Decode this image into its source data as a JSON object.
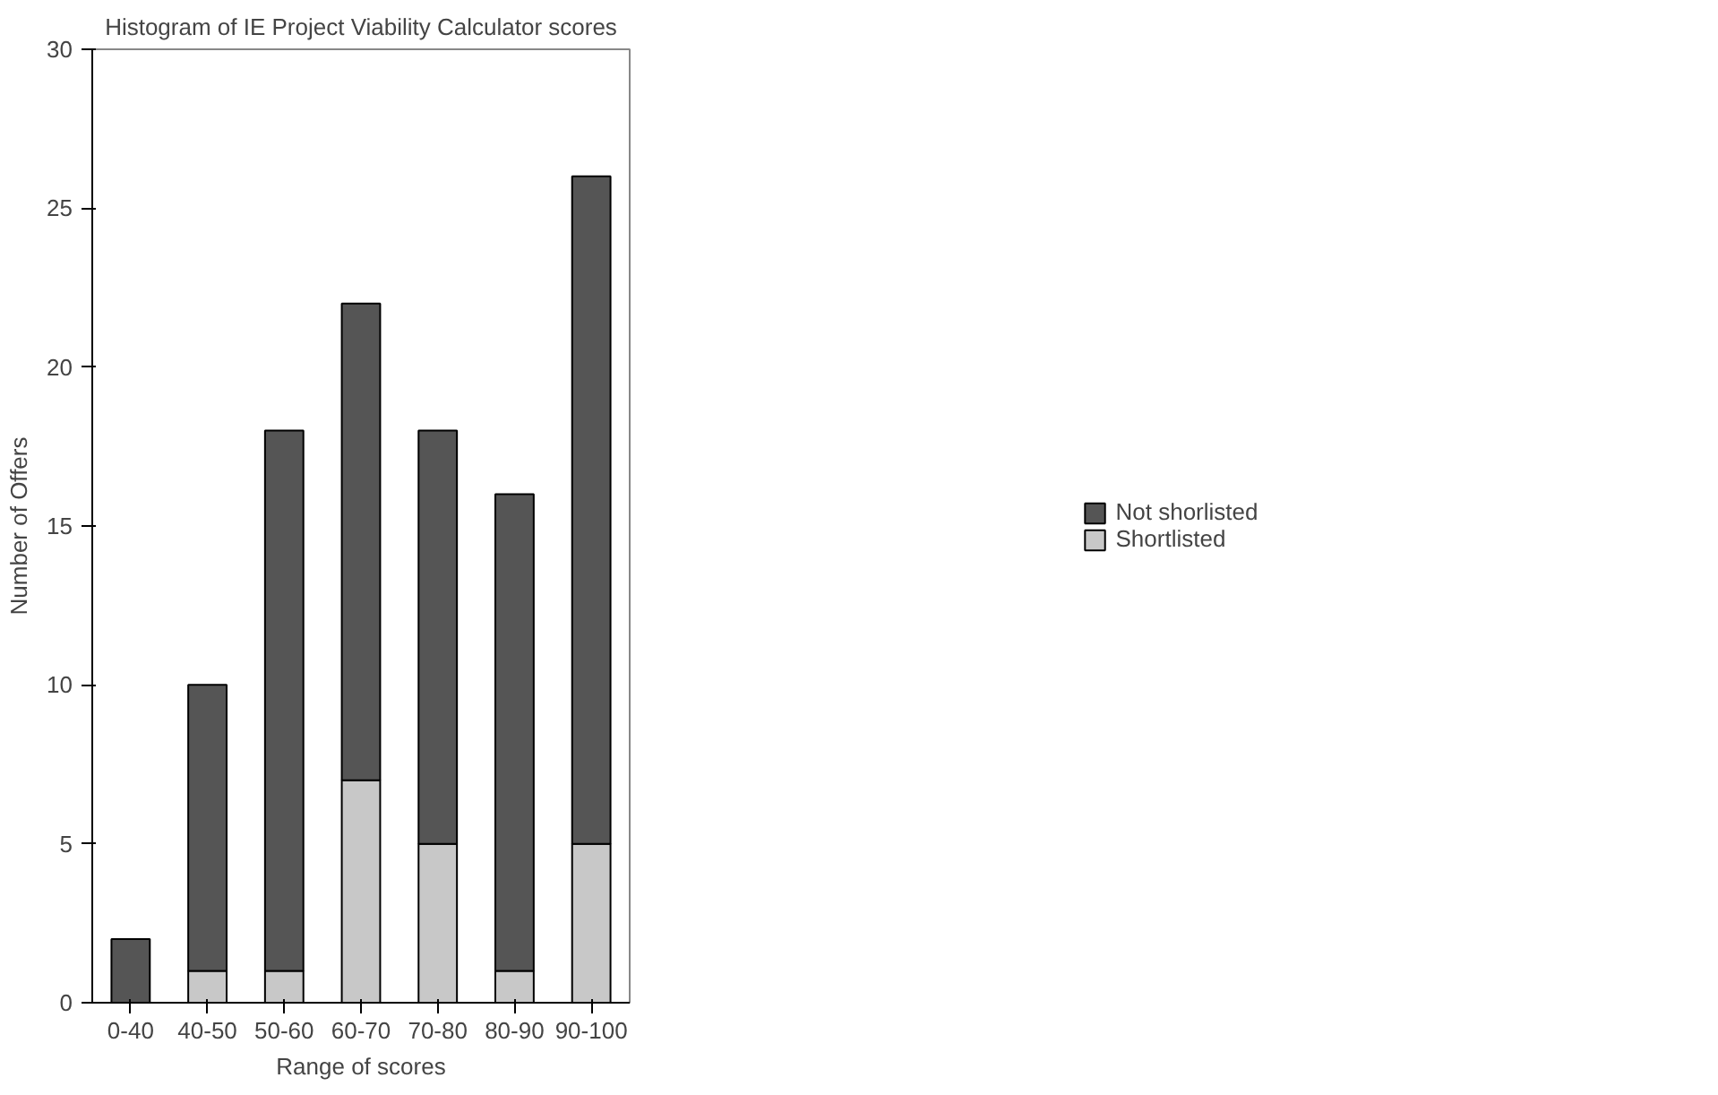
{
  "chart_data": {
    "type": "bar",
    "title": "Histogram of IE Project Viability Calculator scores",
    "xlabel": "Range of scores",
    "ylabel": "Number of Offers",
    "categories": [
      "0-40",
      "40-50",
      "50-60",
      "60-70",
      "70-80",
      "80-90",
      "90-100"
    ],
    "stacked": true,
    "series": [
      {
        "name": "Shortlisted",
        "color": "#c8c8c8",
        "values": [
          0,
          1,
          1,
          7,
          5,
          1,
          5
        ]
      },
      {
        "name": "Not shorlisted",
        "color": "#555555",
        "values": [
          2,
          9,
          17,
          15,
          13,
          15,
          21
        ]
      }
    ],
    "ylim": [
      0,
      30
    ],
    "yticks": [
      0,
      5,
      10,
      15,
      20,
      25,
      30
    ],
    "grid": false,
    "legend": "right"
  }
}
